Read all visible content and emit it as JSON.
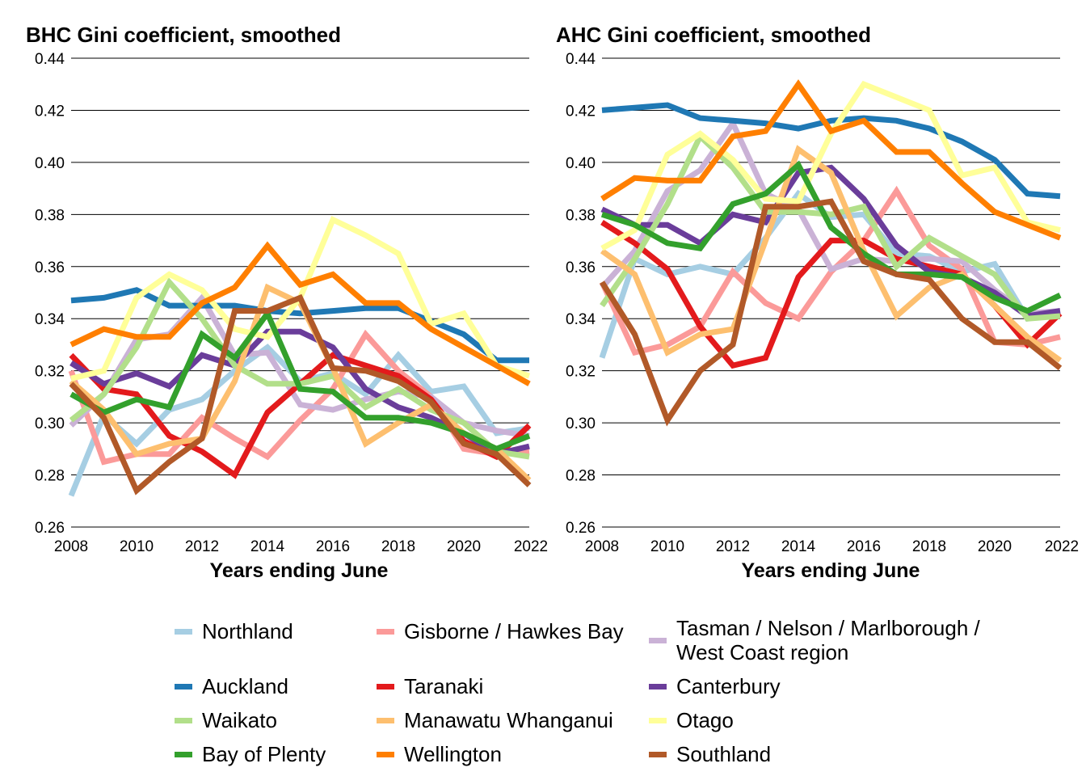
{
  "chart_data": [
    {
      "type": "line",
      "title": "BHC Gini coefficient, smoothed",
      "xlabel": "Years ending June",
      "ylabel": "",
      "xlim": [
        2008,
        2022
      ],
      "ylim": [
        0.26,
        0.44
      ],
      "xticks": [
        "2008",
        "2010",
        "2012",
        "2014",
        "2016",
        "2018",
        "2020",
        "2022"
      ],
      "yticks": [
        "0.26",
        "0.28",
        "0.30",
        "0.32",
        "0.34",
        "0.36",
        "0.38",
        "0.40",
        "0.42",
        "0.44"
      ],
      "grid": "horizontal",
      "x": [
        2008,
        2009,
        2010,
        2011,
        2012,
        2013,
        2014,
        2015,
        2016,
        2017,
        2018,
        2019,
        2020,
        2021,
        2022
      ],
      "series": [
        {
          "name": "Northland",
          "values": [
            0.272,
            0.303,
            0.292,
            0.305,
            0.309,
            0.32,
            0.329,
            0.316,
            0.319,
            0.311,
            0.326,
            0.312,
            0.314,
            0.296,
            0.298
          ]
        },
        {
          "name": "Gisborne / Hawkes Bay",
          "values": [
            0.32,
            0.285,
            0.288,
            0.288,
            0.302,
            0.294,
            0.287,
            0.301,
            0.313,
            0.334,
            0.32,
            0.31,
            0.29,
            0.288,
            0.289
          ]
        },
        {
          "name": "Tasman / Nelson / Marlborough / West Coast region",
          "values": [
            0.299,
            0.311,
            0.332,
            0.334,
            0.348,
            0.326,
            0.327,
            0.307,
            0.305,
            0.309,
            0.312,
            0.31,
            0.3,
            0.297,
            0.295
          ]
        },
        {
          "name": "Auckland",
          "values": [
            0.347,
            0.348,
            0.351,
            0.345,
            0.345,
            0.345,
            0.343,
            0.342,
            0.343,
            0.344,
            0.344,
            0.339,
            0.334,
            0.324,
            0.324
          ]
        },
        {
          "name": "Taranaki",
          "values": [
            0.326,
            0.313,
            0.311,
            0.295,
            0.289,
            0.28,
            0.304,
            0.315,
            0.326,
            0.322,
            0.318,
            0.309,
            0.293,
            0.287,
            0.299
          ]
        },
        {
          "name": "Canterbury",
          "values": [
            0.323,
            0.315,
            0.319,
            0.314,
            0.326,
            0.322,
            0.335,
            0.335,
            0.329,
            0.313,
            0.306,
            0.302,
            0.296,
            0.288,
            0.291
          ]
        },
        {
          "name": "Waikato",
          "values": [
            0.301,
            0.311,
            0.329,
            0.354,
            0.34,
            0.322,
            0.315,
            0.315,
            0.318,
            0.306,
            0.313,
            0.305,
            0.3,
            0.289,
            0.287
          ]
        },
        {
          "name": "Manawatu Whanganui",
          "values": [
            0.316,
            0.305,
            0.288,
            0.292,
            0.294,
            0.316,
            0.352,
            0.346,
            0.321,
            0.292,
            0.3,
            0.307,
            0.296,
            0.29,
            0.278
          ]
        },
        {
          "name": "Otago",
          "values": [
            0.317,
            0.32,
            0.348,
            0.357,
            0.351,
            0.336,
            0.333,
            0.348,
            0.378,
            0.372,
            0.365,
            0.338,
            0.342,
            0.322,
            0.318
          ]
        },
        {
          "name": "Bay of Plenty",
          "values": [
            0.311,
            0.304,
            0.309,
            0.306,
            0.334,
            0.325,
            0.342,
            0.313,
            0.312,
            0.302,
            0.302,
            0.3,
            0.296,
            0.29,
            0.295
          ]
        },
        {
          "name": "Wellington",
          "values": [
            0.33,
            0.336,
            0.333,
            0.333,
            0.346,
            0.352,
            0.368,
            0.353,
            0.357,
            0.346,
            0.346,
            0.336,
            0.329,
            0.322,
            0.315
          ]
        },
        {
          "name": "Southland",
          "values": [
            0.315,
            0.302,
            0.274,
            0.285,
            0.294,
            0.343,
            0.343,
            0.348,
            0.321,
            0.32,
            0.316,
            0.308,
            0.292,
            0.288,
            0.276
          ]
        }
      ]
    },
    {
      "type": "line",
      "title": "AHC Gini coefficient, smoothed",
      "xlabel": "Years ending June",
      "ylabel": "",
      "xlim": [
        2008,
        2022
      ],
      "ylim": [
        0.26,
        0.44
      ],
      "xticks": [
        "2008",
        "2010",
        "2012",
        "2014",
        "2016",
        "2018",
        "2020",
        "2022"
      ],
      "yticks": [
        "0.26",
        "0.28",
        "0.30",
        "0.32",
        "0.34",
        "0.36",
        "0.38",
        "0.40",
        "0.42",
        "0.44"
      ],
      "grid": "horizontal",
      "x": [
        2008,
        2009,
        2010,
        2011,
        2012,
        2013,
        2014,
        2015,
        2016,
        2017,
        2018,
        2019,
        2020,
        2021,
        2022
      ],
      "series": [
        {
          "name": "Northland",
          "values": [
            0.325,
            0.363,
            0.357,
            0.36,
            0.357,
            0.371,
            0.388,
            0.379,
            0.38,
            0.365,
            0.364,
            0.358,
            0.361,
            0.34,
            0.342
          ]
        },
        {
          "name": "Gisborne / Hawkes Bay",
          "values": [
            0.354,
            0.327,
            0.33,
            0.337,
            0.358,
            0.346,
            0.34,
            0.358,
            0.37,
            0.389,
            0.368,
            0.359,
            0.331,
            0.33,
            0.333
          ]
        },
        {
          "name": "Tasman / Nelson / Marlborough / West Coast region",
          "values": [
            0.352,
            0.366,
            0.389,
            0.397,
            0.415,
            0.388,
            0.382,
            0.359,
            0.363,
            0.362,
            0.363,
            0.362,
            0.351,
            0.342,
            0.343
          ]
        },
        {
          "name": "Auckland",
          "values": [
            0.42,
            0.421,
            0.422,
            0.417,
            0.416,
            0.415,
            0.413,
            0.416,
            0.417,
            0.416,
            0.413,
            0.408,
            0.401,
            0.388,
            0.387
          ]
        },
        {
          "name": "Taranaki",
          "values": [
            0.377,
            0.369,
            0.359,
            0.337,
            0.322,
            0.325,
            0.356,
            0.37,
            0.37,
            0.363,
            0.36,
            0.357,
            0.345,
            0.33,
            0.342
          ]
        },
        {
          "name": "Canterbury",
          "values": [
            0.382,
            0.376,
            0.376,
            0.369,
            0.38,
            0.377,
            0.396,
            0.398,
            0.386,
            0.368,
            0.358,
            0.356,
            0.35,
            0.341,
            0.343
          ]
        },
        {
          "name": "Waikato",
          "values": [
            0.345,
            0.363,
            0.384,
            0.41,
            0.398,
            0.381,
            0.381,
            0.38,
            0.383,
            0.36,
            0.371,
            0.364,
            0.357,
            0.34,
            0.341
          ]
        },
        {
          "name": "Manawatu Whanganui",
          "values": [
            0.366,
            0.357,
            0.327,
            0.334,
            0.336,
            0.37,
            0.405,
            0.396,
            0.366,
            0.341,
            0.352,
            0.357,
            0.345,
            0.333,
            0.324
          ]
        },
        {
          "name": "Otago",
          "values": [
            0.367,
            0.374,
            0.403,
            0.411,
            0.401,
            0.386,
            0.385,
            0.411,
            0.43,
            0.425,
            0.42,
            0.395,
            0.398,
            0.377,
            0.374
          ]
        },
        {
          "name": "Bay of Plenty",
          "values": [
            0.38,
            0.376,
            0.369,
            0.367,
            0.384,
            0.388,
            0.399,
            0.375,
            0.365,
            0.357,
            0.357,
            0.356,
            0.348,
            0.343,
            0.349
          ]
        },
        {
          "name": "Wellington",
          "values": [
            0.386,
            0.394,
            0.393,
            0.393,
            0.41,
            0.412,
            0.43,
            0.412,
            0.416,
            0.404,
            0.404,
            0.392,
            0.381,
            0.376,
            0.371
          ]
        },
        {
          "name": "Southland",
          "values": [
            0.354,
            0.334,
            0.301,
            0.32,
            0.33,
            0.383,
            0.383,
            0.385,
            0.362,
            0.357,
            0.355,
            0.34,
            0.331,
            0.331,
            0.321
          ]
        }
      ]
    }
  ],
  "legend": {
    "placement": "bottom",
    "items": [
      {
        "label": "Northland",
        "color": "#A6CEE3"
      },
      {
        "label": "Gisborne / Hawkes Bay",
        "color": "#FB9A99"
      },
      {
        "label": "Tasman / Nelson / Marlborough /\nWest Coast region",
        "color": "#CAB2D6"
      },
      {
        "label": "Auckland",
        "color": "#1F78B4"
      },
      {
        "label": "Taranaki",
        "color": "#E31A1C"
      },
      {
        "label": "Canterbury",
        "color": "#6A3D9A"
      },
      {
        "label": "Waikato",
        "color": "#B2DF8A"
      },
      {
        "label": "Manawatu Whanganui",
        "color": "#FDBF6F"
      },
      {
        "label": "Otago",
        "color": "#FFFF99"
      },
      {
        "label": "Bay of Plenty",
        "color": "#33A02C"
      },
      {
        "label": "Wellington",
        "color": "#FF7F00"
      },
      {
        "label": "Southland",
        "color": "#B15928"
      }
    ]
  }
}
